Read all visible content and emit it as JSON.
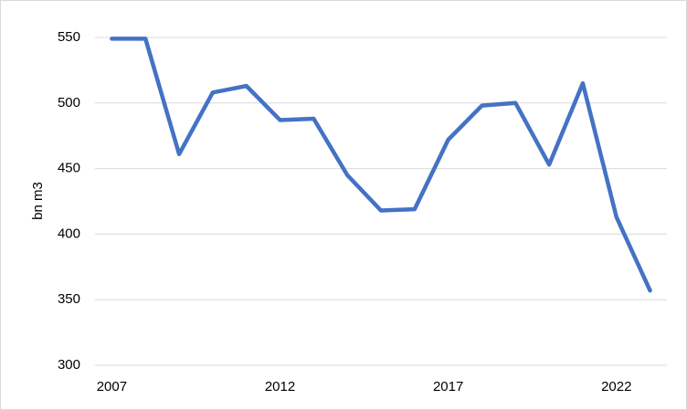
{
  "chart_data": {
    "type": "line",
    "y_axis_label": "bn m3",
    "x": [
      2007,
      2008,
      2009,
      2010,
      2011,
      2012,
      2013,
      2014,
      2015,
      2016,
      2017,
      2018,
      2019,
      2020,
      2021,
      2022,
      2023
    ],
    "series": [
      {
        "color": "#4472c4",
        "values": [
          549,
          549,
          461,
          508,
          513,
          487,
          488,
          445,
          418,
          419,
          472,
          498,
          500,
          453,
          515,
          413,
          357
        ]
      }
    ],
    "xlim": [
      2006.5,
      2023.5
    ],
    "xticks": [
      2007,
      2012,
      2017,
      2022
    ],
    "ylim": [
      300,
      550
    ],
    "yticks": [
      300,
      350,
      400,
      450,
      500,
      550
    ],
    "grid": true
  }
}
